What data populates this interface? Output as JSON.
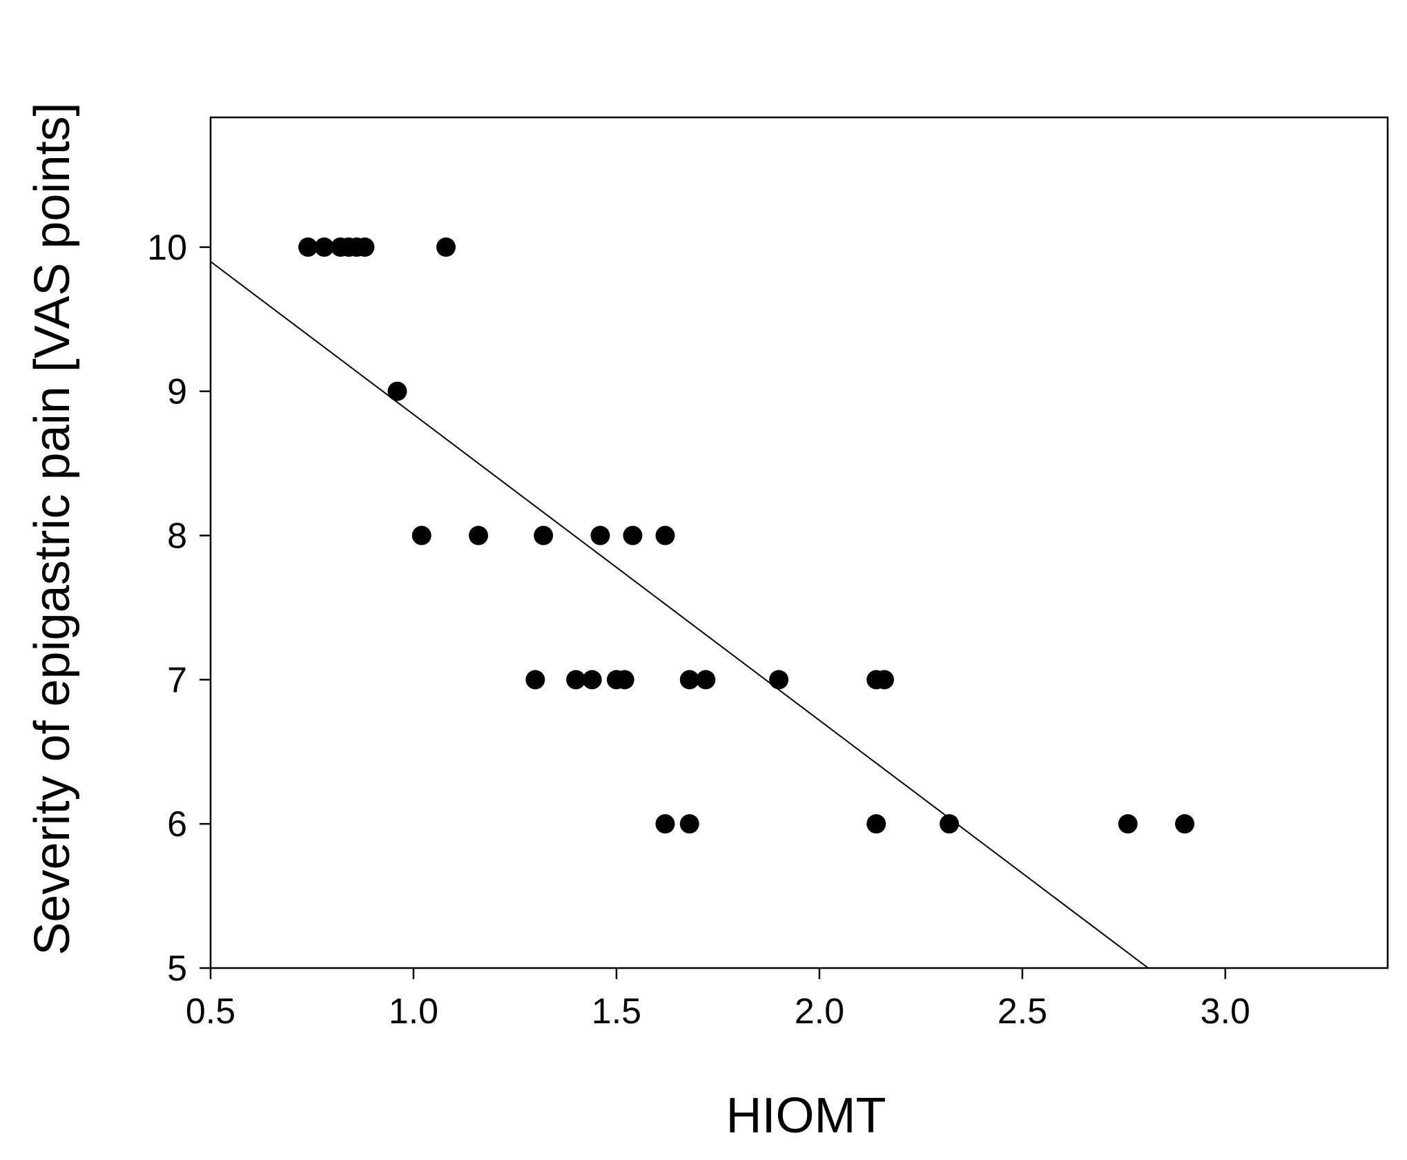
{
  "chart_data": {
    "type": "scatter",
    "title": "",
    "xlabel": "HIOMT",
    "ylabel": "Severity of epigastric pain [VAS points]",
    "xlim": [
      0.5,
      3.4
    ],
    "ylim": [
      5,
      10.9
    ],
    "xticks": [
      0.5,
      1.0,
      1.5,
      2.0,
      2.5,
      3.0
    ],
    "xtick_labels": [
      "0.5",
      "1.0",
      "1.5",
      "2.0",
      "2.5",
      "3.0"
    ],
    "yticks": [
      5,
      6,
      7,
      8,
      9,
      10
    ],
    "ytick_labels": [
      "5",
      "6",
      "7",
      "8",
      "9",
      "10"
    ],
    "grid": false,
    "legend": "none",
    "marker_color": "#000000",
    "line_color": "#000000",
    "points": [
      {
        "x": 0.74,
        "y": 10
      },
      {
        "x": 0.78,
        "y": 10
      },
      {
        "x": 0.82,
        "y": 10
      },
      {
        "x": 0.84,
        "y": 10
      },
      {
        "x": 0.86,
        "y": 10
      },
      {
        "x": 0.88,
        "y": 10
      },
      {
        "x": 1.08,
        "y": 10
      },
      {
        "x": 0.96,
        "y": 9
      },
      {
        "x": 1.02,
        "y": 8
      },
      {
        "x": 1.16,
        "y": 8
      },
      {
        "x": 1.32,
        "y": 8
      },
      {
        "x": 1.46,
        "y": 8
      },
      {
        "x": 1.54,
        "y": 8
      },
      {
        "x": 1.62,
        "y": 8
      },
      {
        "x": 1.3,
        "y": 7
      },
      {
        "x": 1.4,
        "y": 7
      },
      {
        "x": 1.44,
        "y": 7
      },
      {
        "x": 1.5,
        "y": 7
      },
      {
        "x": 1.52,
        "y": 7
      },
      {
        "x": 1.68,
        "y": 7
      },
      {
        "x": 1.72,
        "y": 7
      },
      {
        "x": 1.9,
        "y": 7
      },
      {
        "x": 2.14,
        "y": 7
      },
      {
        "x": 2.16,
        "y": 7
      },
      {
        "x": 1.62,
        "y": 6
      },
      {
        "x": 1.68,
        "y": 6
      },
      {
        "x": 2.14,
        "y": 6
      },
      {
        "x": 2.32,
        "y": 6
      },
      {
        "x": 2.76,
        "y": 6
      },
      {
        "x": 2.9,
        "y": 6
      }
    ],
    "regression_line": {
      "x": [
        0.5,
        2.81
      ],
      "y": [
        9.9,
        5.0
      ]
    }
  }
}
